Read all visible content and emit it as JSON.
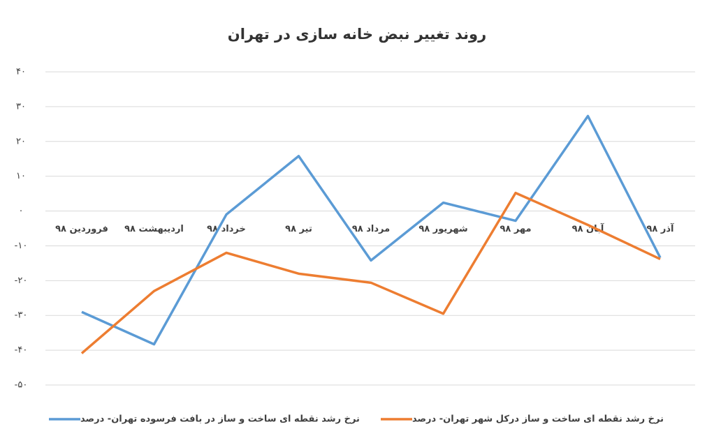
{
  "chart_data": {
    "type": "line",
    "title": "روند تغییر نبض خانه سازی در تهران",
    "categories": [
      "فروردین ۹۸",
      "اردیبهشت ۹۸",
      "خرداد ۹۸",
      "تیر ۹۸",
      "مرداد ۹۸",
      "شهریور ۹۸",
      "مهر ۹۸",
      "آبان ۹۸",
      "آذر ۹۸"
    ],
    "series": [
      {
        "name": "نرخ رشد نقطه ای ساخت و ساز در بافت فرسوده تهران- درصد",
        "color": "#5b9bd5",
        "values": [
          -29,
          -38.3,
          -1,
          15.8,
          -14.2,
          2.4,
          -2.8,
          27.3,
          -13.4
        ]
      },
      {
        "name": "نرخ رشد نقطه ای ساخت و ساز درکل شهر تهران- درصد",
        "color": "#ed7d31",
        "values": [
          -40.9,
          -23,
          -12,
          -18,
          -20.6,
          -29.5,
          5.2,
          -4,
          -13.8
        ]
      }
    ],
    "ylim": [
      -50,
      40
    ],
    "yticks": [
      {
        "value": -50,
        "label": "-۵۰"
      },
      {
        "value": -40,
        "label": "-۴۰"
      },
      {
        "value": -30,
        "label": "-۳۰"
      },
      {
        "value": -20,
        "label": "-۲۰"
      },
      {
        "value": -10,
        "label": "-۱۰"
      },
      {
        "value": 0,
        "label": "۰"
      },
      {
        "value": 10,
        "label": "۱۰"
      },
      {
        "value": 20,
        "label": "۲۰"
      },
      {
        "value": 30,
        "label": "۳۰"
      },
      {
        "value": 40,
        "label": "۴۰"
      }
    ],
    "grid": true,
    "legend": "bottom"
  }
}
